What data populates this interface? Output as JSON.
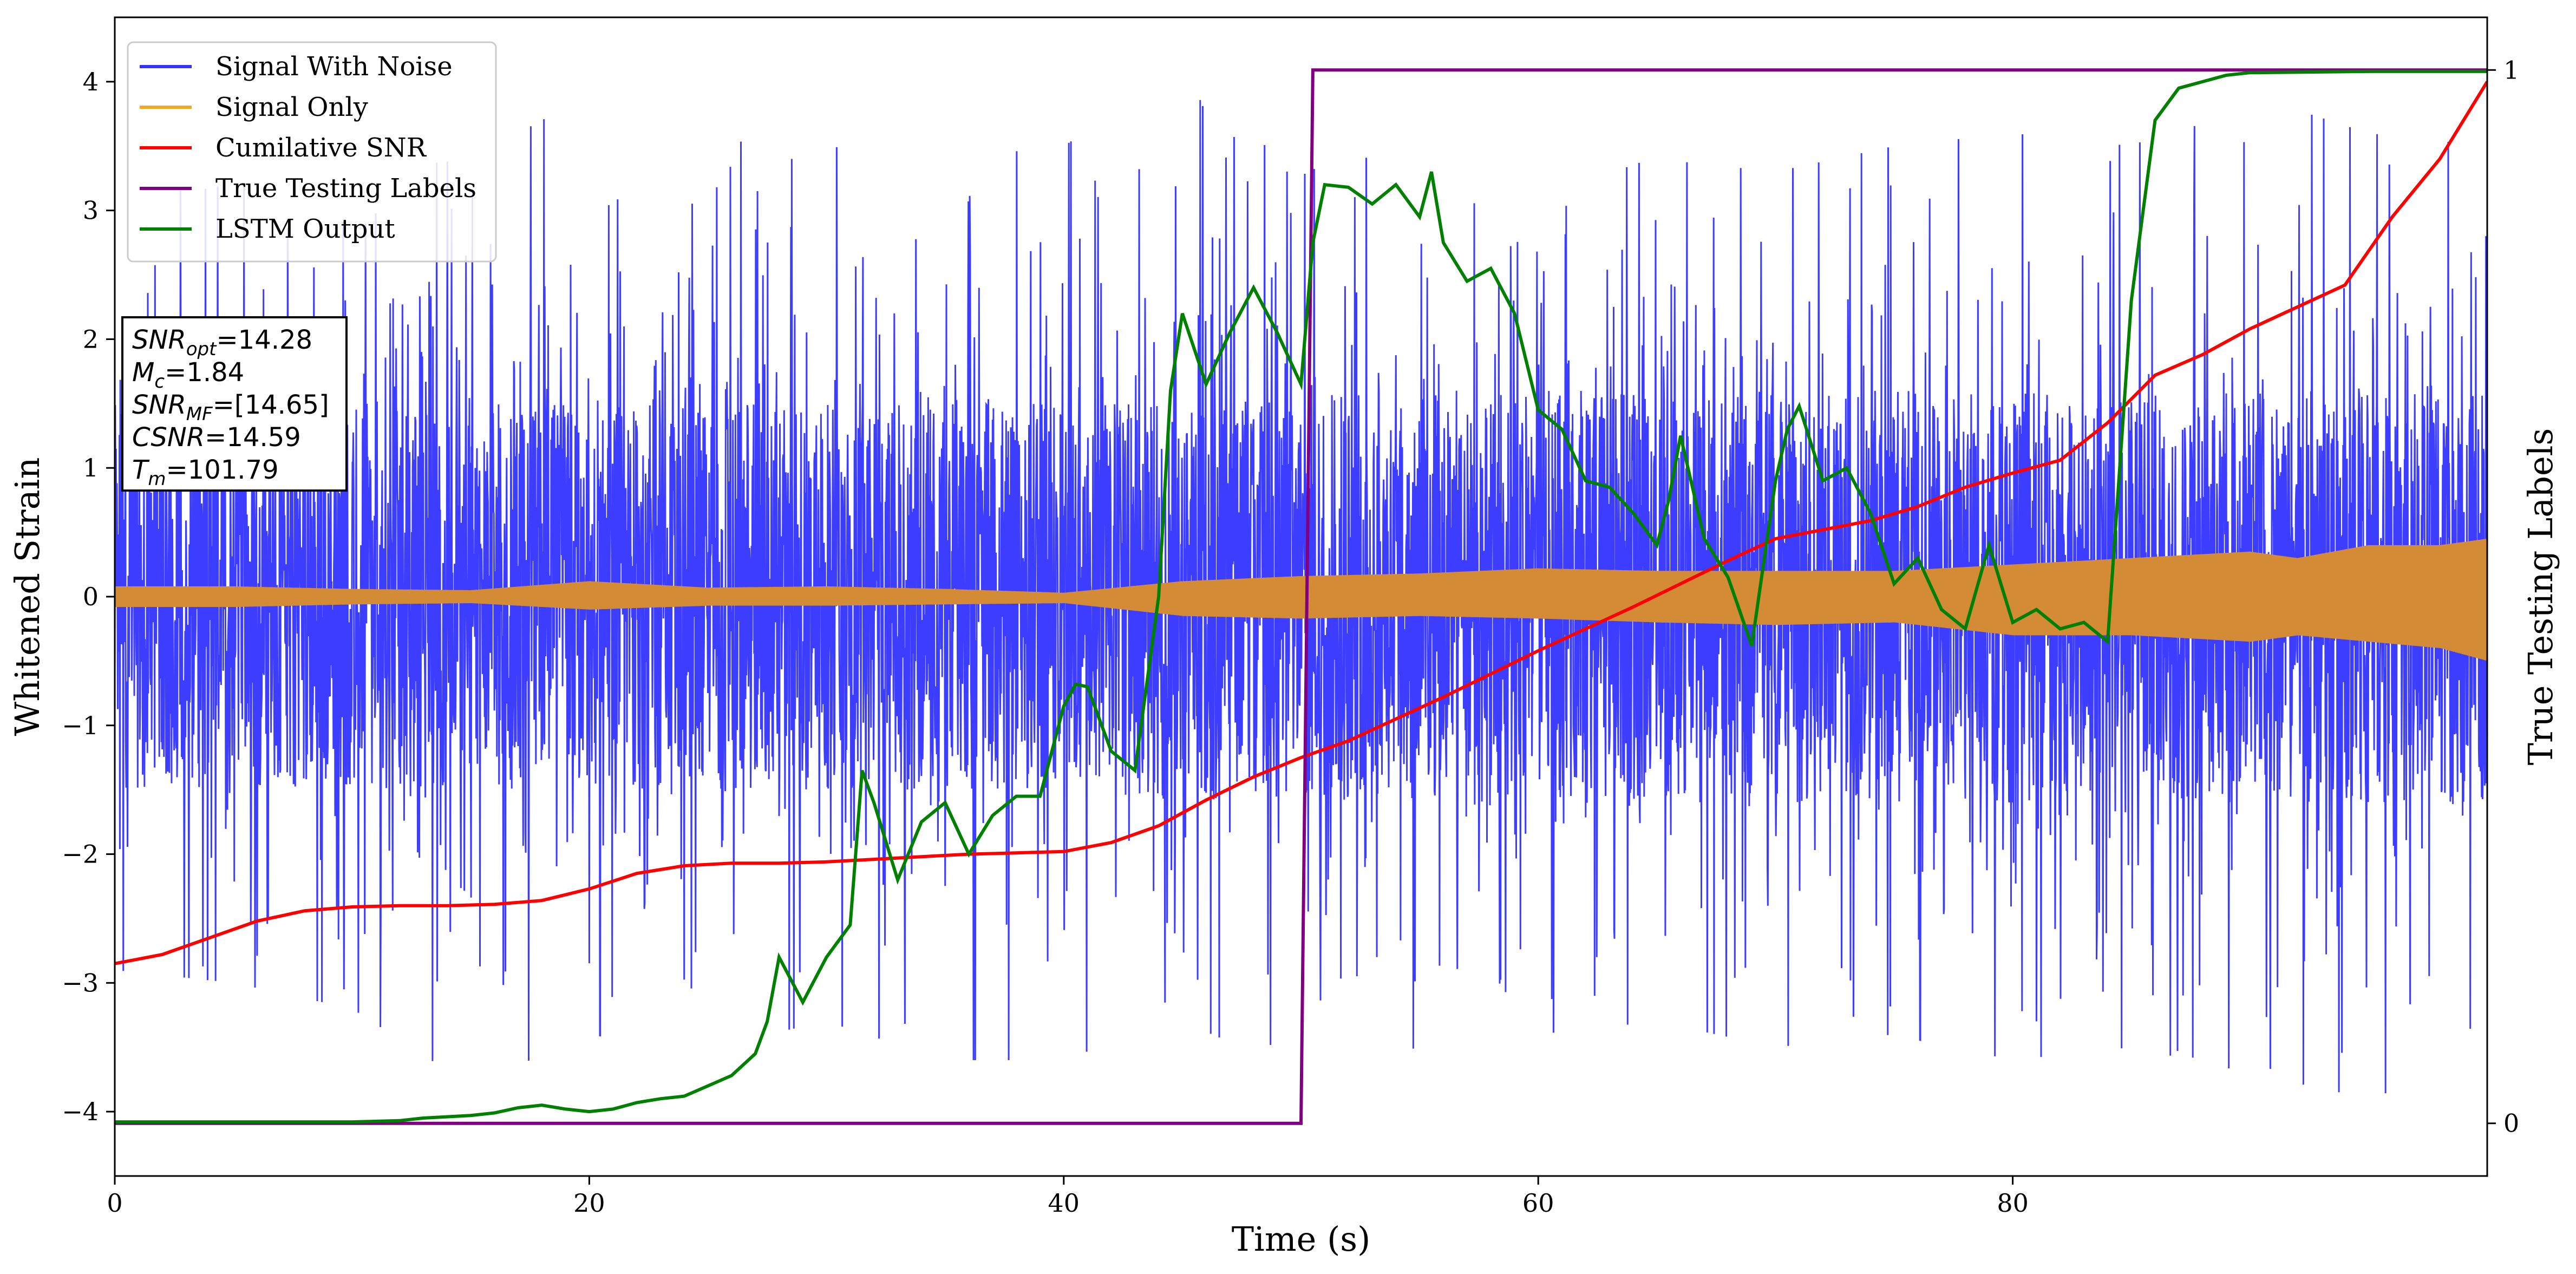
{
  "chart_data": {
    "type": "line",
    "xlabel": "Time (s)",
    "ylabel": "Whitened Strain",
    "ylabel_right": "True Testing Labels",
    "xlim": [
      0,
      100
    ],
    "ylim": [
      -4.5,
      4.5
    ],
    "ylim_right": [
      -0.05,
      1.05
    ],
    "x_ticks": [
      0,
      20,
      40,
      60,
      80
    ],
    "y_ticks": [
      -4,
      -3,
      -2,
      -1,
      0,
      1,
      2,
      3,
      4
    ],
    "y_ticks_right": [
      0,
      1
    ],
    "grid": false,
    "legend_position": "top-left",
    "legend": [
      {
        "name": "Signal With Noise",
        "color": "#3333ff"
      },
      {
        "name": "Signal Only",
        "color": "#f5a623"
      },
      {
        "name": "Cumilative SNR",
        "color": "#ff0000"
      },
      {
        "name": "True Testing Labels",
        "color": "#800080"
      },
      {
        "name": "LSTM Output",
        "color": "#008000"
      }
    ],
    "annotation": [
      {
        "id": "snr_opt",
        "main": "SNR",
        "sub": "opt",
        "value": "=14.28"
      },
      {
        "id": "mc",
        "main": "M",
        "sub": "c",
        "value": "=1.84"
      },
      {
        "id": "snr_mf",
        "main": "SNR",
        "sub": "MF",
        "value": "=[14.65]"
      },
      {
        "id": "csnr",
        "main": "CSNR",
        "sub": "",
        "value": "=14.59"
      },
      {
        "id": "tm",
        "main": "T",
        "sub": "m",
        "value": "=101.79"
      }
    ],
    "series": [
      {
        "name": "Signal With Noise",
        "color": "#3333ff",
        "note": "dense noisy strain; per-segment range of whitened strain",
        "envelope_x": [
          0,
          5,
          10,
          15,
          20,
          25,
          30,
          35,
          40,
          45,
          50,
          55,
          60,
          65,
          70,
          75,
          80,
          85,
          90,
          95,
          100
        ],
        "envelope_ymin": [
          -2.9,
          -3.0,
          -3.2,
          -3.8,
          -3.4,
          -3.5,
          -3.3,
          -3.6,
          -3.6,
          -3.3,
          -3.7,
          -3.5,
          -3.4,
          -3.3,
          -3.5,
          -3.4,
          -3.6,
          -3.5,
          -3.7,
          -3.9,
          -3.6
        ],
        "envelope_ymax": [
          3.1,
          3.2,
          3.3,
          3.4,
          3.9,
          3.6,
          3.5,
          3.4,
          3.5,
          4.1,
          3.3,
          3.5,
          3.2,
          3.4,
          3.3,
          3.5,
          3.6,
          3.5,
          3.9,
          3.6,
          3.5
        ],
        "core_ymin": [
          -1.5,
          -1.5,
          -1.5,
          -1.5,
          -1.5,
          -1.5,
          -1.5,
          -1.5,
          -1.5,
          -1.6,
          -1.6,
          -1.6,
          -1.6,
          -1.6,
          -1.6,
          -1.6,
          -1.6,
          -1.6,
          -1.6,
          -1.6,
          -1.6
        ],
        "core_ymax": [
          1.5,
          1.5,
          1.5,
          1.5,
          1.5,
          1.5,
          1.5,
          1.5,
          1.5,
          1.5,
          1.6,
          1.6,
          1.6,
          1.6,
          1.6,
          1.6,
          1.6,
          1.6,
          1.6,
          1.6,
          1.6
        ]
      },
      {
        "name": "Signal Only",
        "color": "#d38b35",
        "note": "oscillating chirp; envelope of the filled oscillation",
        "x": [
          0,
          5,
          10,
          15,
          20,
          25,
          30,
          35,
          40,
          45,
          50,
          55,
          60,
          65,
          70,
          75,
          80,
          85,
          90,
          92,
          95,
          98,
          100
        ],
        "upper": [
          0.08,
          0.08,
          0.06,
          0.05,
          0.12,
          0.07,
          0.08,
          0.06,
          0.03,
          0.12,
          0.16,
          0.18,
          0.22,
          0.2,
          0.2,
          0.2,
          0.25,
          0.3,
          0.35,
          0.3,
          0.4,
          0.4,
          0.45
        ],
        "lower": [
          -0.08,
          -0.08,
          -0.06,
          -0.05,
          -0.1,
          -0.07,
          -0.07,
          -0.06,
          -0.05,
          -0.15,
          -0.17,
          -0.15,
          -0.17,
          -0.2,
          -0.22,
          -0.2,
          -0.3,
          -0.3,
          -0.35,
          -0.3,
          -0.35,
          -0.4,
          -0.5
        ]
      },
      {
        "name": "Cumilative SNR",
        "color": "#ff0000",
        "x": [
          0,
          2,
          4,
          6,
          8,
          10,
          12,
          14,
          16,
          18,
          20,
          22,
          24,
          26,
          28,
          30,
          32,
          34,
          36,
          38,
          40,
          42,
          44,
          46,
          48,
          50,
          52,
          54,
          56,
          58,
          60,
          62,
          64,
          66,
          68,
          70,
          72,
          74,
          76,
          78,
          80,
          82,
          84,
          86,
          88,
          90,
          92,
          94,
          96,
          98,
          100
        ],
        "y": [
          -2.85,
          -2.78,
          -2.65,
          -2.52,
          -2.44,
          -2.41,
          -2.4,
          -2.4,
          -2.39,
          -2.36,
          -2.27,
          -2.15,
          -2.09,
          -2.07,
          -2.07,
          -2.06,
          -2.04,
          -2.02,
          -2.0,
          -1.99,
          -1.98,
          -1.91,
          -1.78,
          -1.58,
          -1.4,
          -1.25,
          -1.12,
          -0.95,
          -0.78,
          -0.6,
          -0.42,
          -0.25,
          -0.08,
          0.1,
          0.28,
          0.45,
          0.52,
          0.59,
          0.7,
          0.85,
          0.96,
          1.06,
          1.35,
          1.72,
          1.88,
          2.08,
          2.25,
          2.42,
          2.95,
          3.4,
          4.0
        ]
      },
      {
        "name": "True Testing Labels",
        "color": "#800080",
        "axis": "right",
        "x": [
          0,
          50,
          50.5,
          100
        ],
        "y": [
          0,
          0,
          1,
          1
        ]
      },
      {
        "name": "LSTM Output",
        "color": "#008000",
        "x": [
          0,
          5,
          10,
          12,
          13,
          14,
          15,
          16,
          17,
          18,
          19,
          20,
          21,
          22,
          23,
          24,
          25,
          26,
          27,
          27.5,
          28,
          29,
          30,
          31,
          31.5,
          32,
          33,
          34,
          35,
          36,
          37,
          38,
          39,
          40,
          40.5,
          41,
          42,
          43,
          44,
          44.5,
          45,
          46,
          47,
          48,
          49,
          50,
          50.5,
          51,
          52,
          53,
          54,
          55,
          55.5,
          56,
          57,
          58,
          59,
          60,
          61,
          62,
          63,
          64,
          65,
          65.5,
          66,
          67,
          68,
          69,
          70,
          70.5,
          71,
          72,
          73,
          74,
          75,
          76,
          77,
          78,
          79,
          80,
          81,
          82,
          83,
          84,
          85,
          86,
          87,
          88,
          89,
          90,
          95,
          100
        ],
        "y": [
          -4.08,
          -4.08,
          -4.08,
          -4.07,
          -4.05,
          -4.04,
          -4.03,
          -4.01,
          -3.97,
          -3.95,
          -3.98,
          -4.0,
          -3.98,
          -3.93,
          -3.9,
          -3.88,
          -3.8,
          -3.72,
          -3.55,
          -3.3,
          -2.8,
          -3.15,
          -2.8,
          -2.55,
          -1.35,
          -1.6,
          -2.2,
          -1.75,
          -1.6,
          -2.0,
          -1.7,
          -1.55,
          -1.55,
          -0.85,
          -0.68,
          -0.7,
          -1.2,
          -1.35,
          0.0,
          1.6,
          2.2,
          1.65,
          2.05,
          2.4,
          2.05,
          1.65,
          2.75,
          3.2,
          3.18,
          3.05,
          3.2,
          2.95,
          3.3,
          2.75,
          2.45,
          2.55,
          2.2,
          1.45,
          1.3,
          0.9,
          0.85,
          0.65,
          0.4,
          0.75,
          1.25,
          0.45,
          0.15,
          -0.38,
          0.9,
          1.3,
          1.48,
          0.9,
          1.0,
          0.65,
          0.1,
          0.3,
          -0.1,
          -0.25,
          0.4,
          -0.2,
          -0.1,
          -0.25,
          -0.2,
          -0.35,
          2.3,
          3.7,
          3.95,
          4.0,
          4.05,
          4.07,
          4.08,
          4.08
        ]
      }
    ]
  }
}
